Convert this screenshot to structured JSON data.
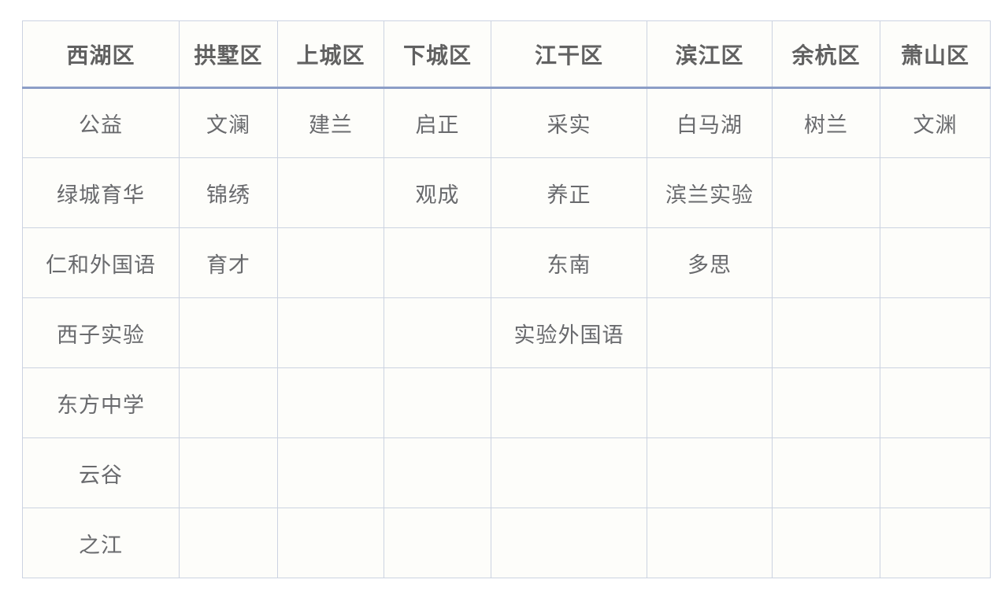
{
  "colors": {
    "grid": "#ccd3e1",
    "header_underline": "#8c9ec7",
    "header_text": "#616161",
    "body_text": "#696a6d",
    "cell_bg": "#fdfdfa"
  },
  "table": {
    "columns": [
      "西湖区",
      "拱墅区",
      "上城区",
      "下城区",
      "江干区",
      "滨江区",
      "余杭区",
      "萧山区"
    ],
    "rows": [
      {
        "cells": [
          "公益",
          "文澜",
          "建兰",
          "启正",
          "采实",
          "白马湖",
          "树兰",
          "文渊"
        ]
      },
      {
        "cells": [
          "绿城育华",
          "锦绣",
          "",
          "观成",
          "养正",
          "滨兰实验",
          "",
          ""
        ]
      },
      {
        "cells": [
          "仁和外国语",
          "育才",
          "",
          "",
          "东南",
          "多思",
          "",
          ""
        ]
      },
      {
        "cells": [
          "西子实验",
          "",
          "",
          "",
          "实验外国语",
          "",
          "",
          ""
        ]
      },
      {
        "cells": [
          "东方中学",
          "",
          "",
          "",
          "",
          "",
          "",
          ""
        ]
      },
      {
        "cells": [
          "云谷",
          "",
          "",
          "",
          "",
          "",
          "",
          ""
        ]
      },
      {
        "cells": [
          "之江",
          "",
          "",
          "",
          "",
          "",
          "",
          ""
        ]
      }
    ]
  }
}
